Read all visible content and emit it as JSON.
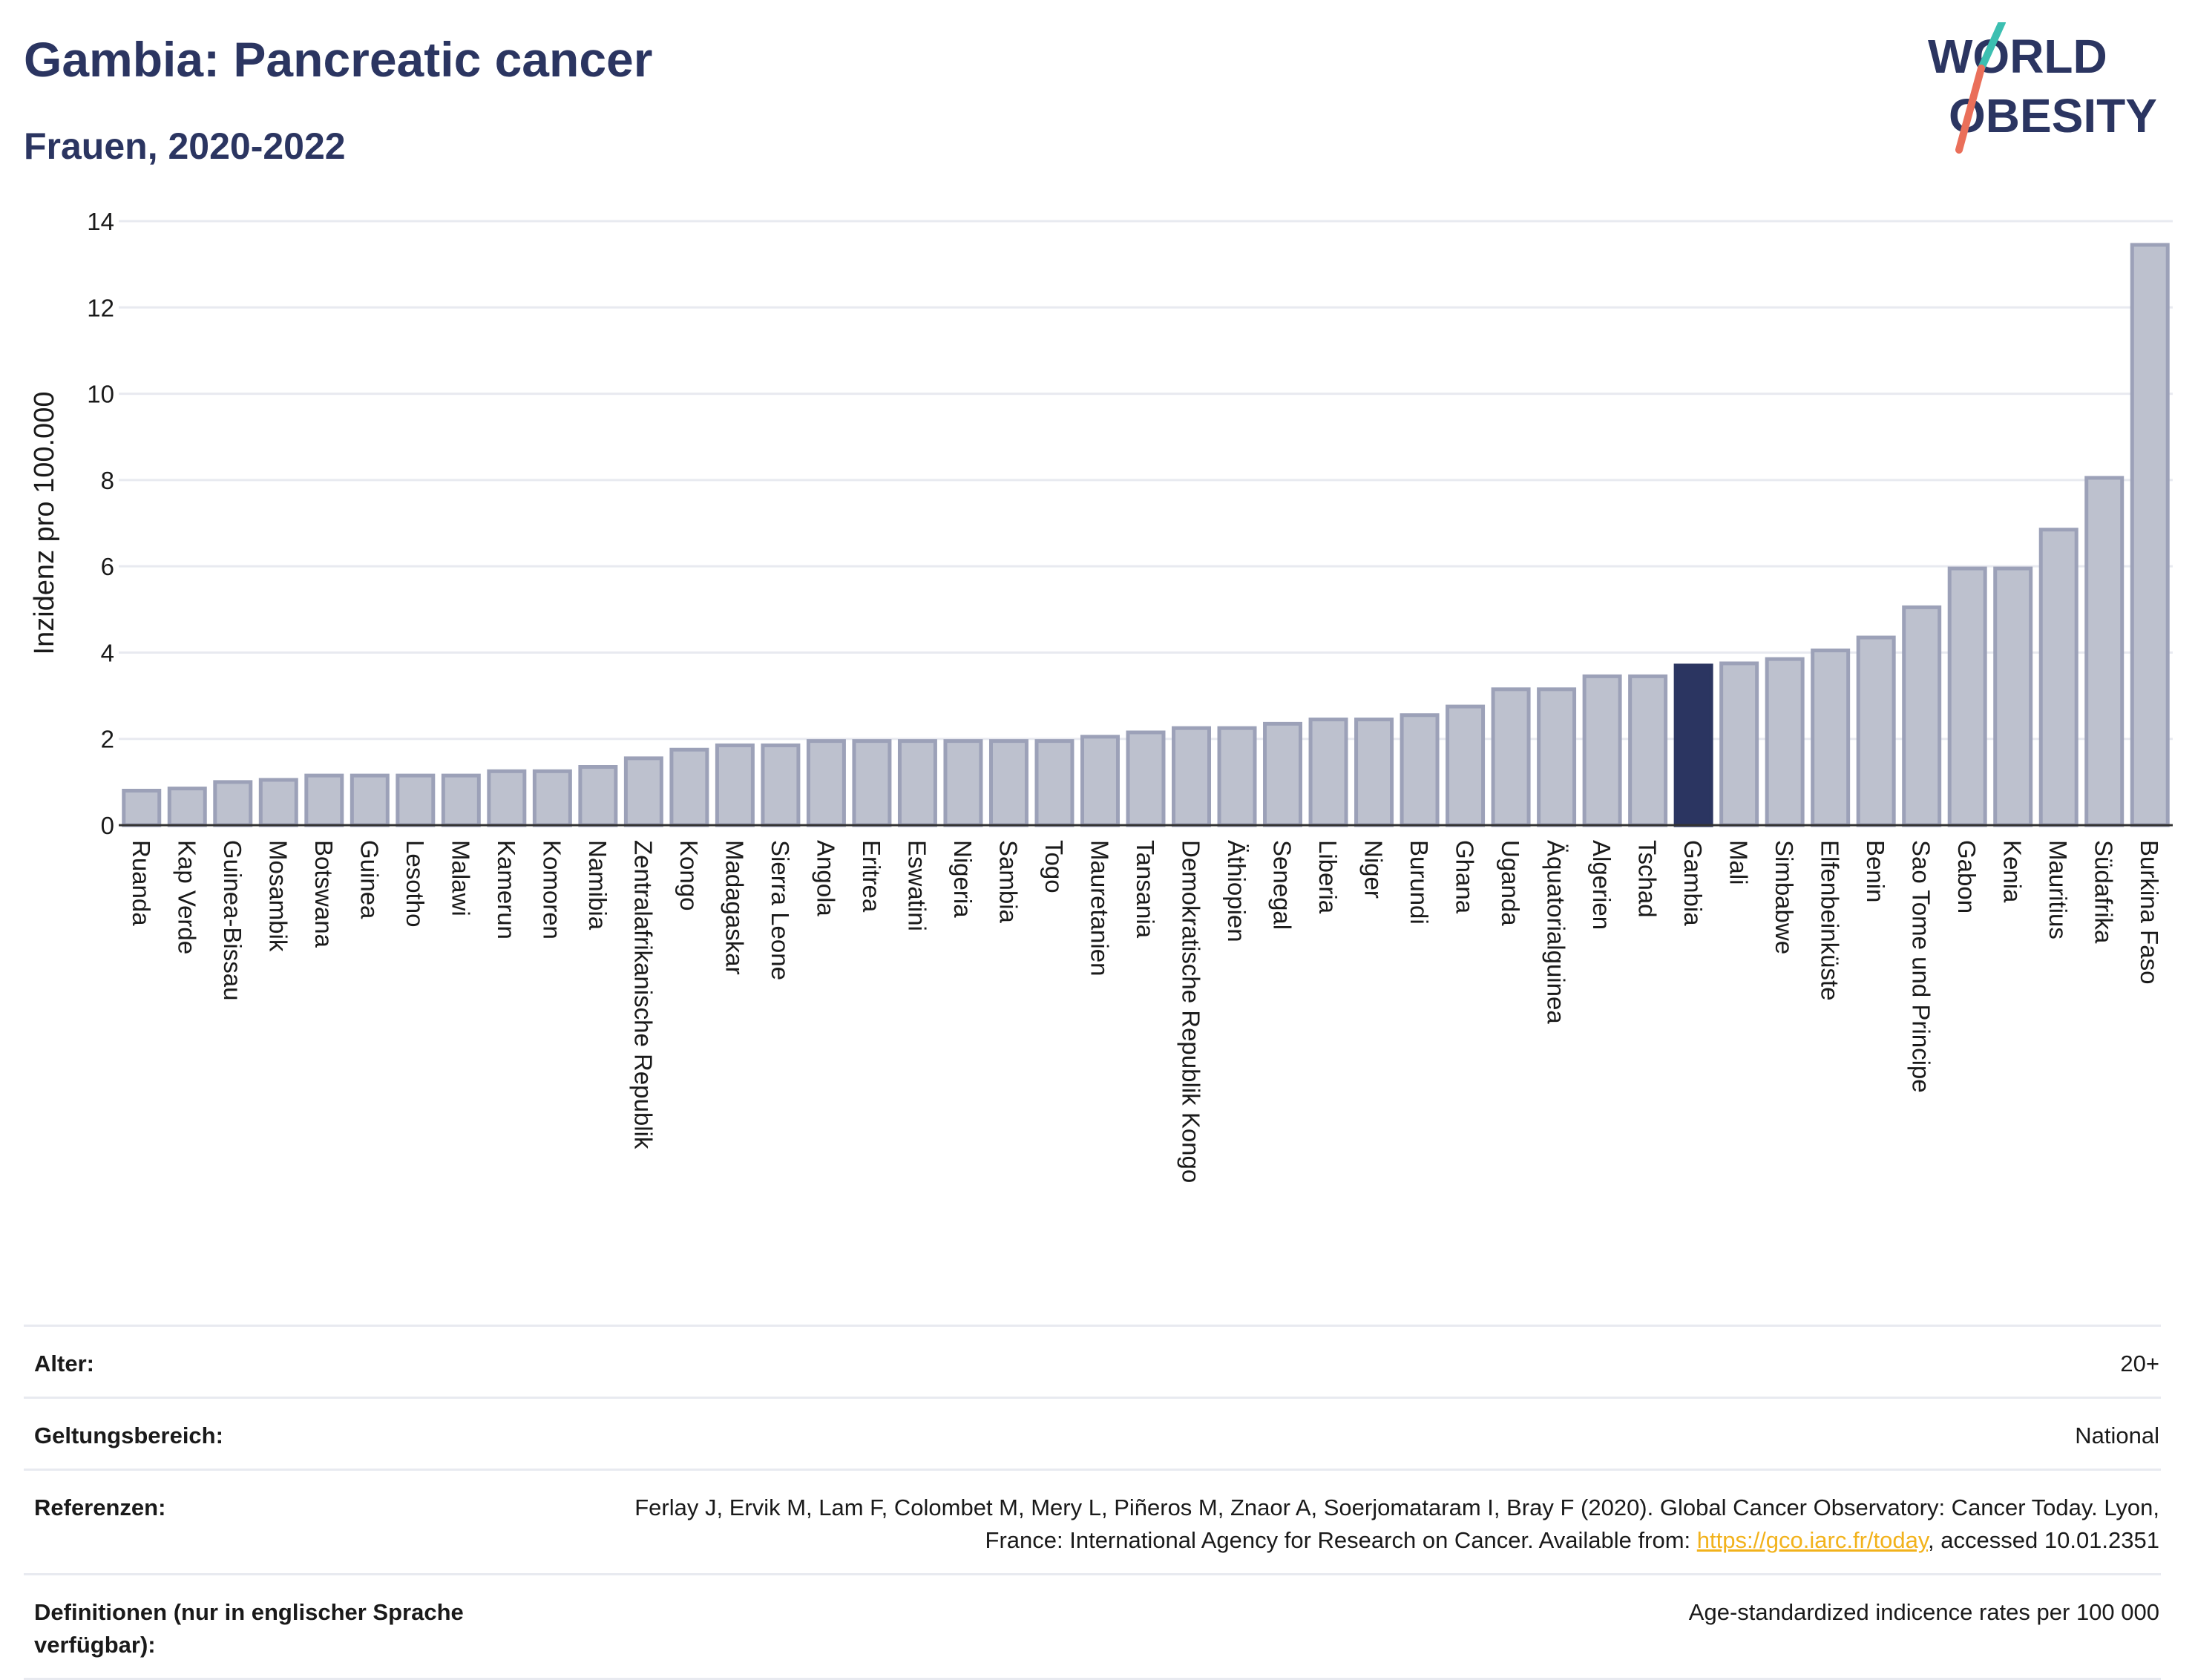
{
  "header": {
    "title": "Gambia: Pancreatic cancer",
    "subtitle": "Frauen, 2020-2022"
  },
  "logo": {
    "line1": "WORLD",
    "line2": "OBESITY",
    "slash_colors": [
      "#3cbfb1",
      "#ea6f5a"
    ]
  },
  "colors": {
    "bar": "#bdc1ce",
    "bar_border": "#9ca1b8",
    "highlight": "#2b3561",
    "grid": "#e8eaf0",
    "title": "#2b3561",
    "link": "#f2b21b"
  },
  "chart_data": {
    "type": "bar",
    "title": "Gambia: Pancreatic cancer",
    "subtitle": "Frauen, 2020-2022",
    "ylabel": "Inzidenz pro 100.000",
    "xlabel": "",
    "ylim": [
      0,
      14
    ],
    "yticks": [
      0,
      2,
      4,
      6,
      8,
      10,
      12,
      14
    ],
    "grid": true,
    "highlight": "Gambia",
    "categories": [
      "Ruanda",
      "Kap Verde",
      "Guinea-Bissau",
      "Mosambik",
      "Botswana",
      "Guinea",
      "Lesotho",
      "Malawi",
      "Kamerun",
      "Komoren",
      "Namibia",
      "Zentralafrikanische Republik",
      "Kongo",
      "Madagaskar",
      "Sierra Leone",
      "Angola",
      "Eritrea",
      "Eswatini",
      "Nigeria",
      "Sambia",
      "Togo",
      "Mauretanien",
      "Tansania",
      "Demokratische Republik Kongo",
      "Äthiopien",
      "Senegal",
      "Liberia",
      "Niger",
      "Burundi",
      "Ghana",
      "Uganda",
      "Äquatorialguinea",
      "Algerien",
      "Tschad",
      "Gambia",
      "Mali",
      "Simbabwe",
      "Elfenbeinküste",
      "Benin",
      "Sao Tome und Principe",
      "Gabon",
      "Kenia",
      "Mauritius",
      "Südafrika",
      "Burkina Faso"
    ],
    "values": [
      0.8,
      0.85,
      1.0,
      1.05,
      1.15,
      1.15,
      1.15,
      1.15,
      1.25,
      1.25,
      1.35,
      1.55,
      1.75,
      1.85,
      1.85,
      1.95,
      1.95,
      1.95,
      1.95,
      1.95,
      1.95,
      2.05,
      2.15,
      2.25,
      2.25,
      2.35,
      2.45,
      2.45,
      2.55,
      2.75,
      3.15,
      3.15,
      3.45,
      3.45,
      3.7,
      3.75,
      3.85,
      4.05,
      4.35,
      5.05,
      5.95,
      5.95,
      6.85,
      8.05,
      13.45
    ]
  },
  "info": [
    {
      "key": "Alter:",
      "value": "20+"
    },
    {
      "key": "Geltungsbereich:",
      "value": "National"
    },
    {
      "key": "Referenzen:",
      "value_before": "Ferlay J, Ervik M, Lam F, Colombet M, Mery L, Piñeros M, Znaor A, Soerjomataram I, Bray F (2020). Global Cancer Observatory: Cancer Today. Lyon, France: International Agency for Research on Cancer. Available from: ",
      "link": "https://gco.iarc.fr/today",
      "value_after": ", accessed 10.01.2351"
    },
    {
      "key": "Definitionen (nur in englischer Sprache verfügbar):",
      "value": "Age-standardized indicence rates per 100 000"
    }
  ]
}
